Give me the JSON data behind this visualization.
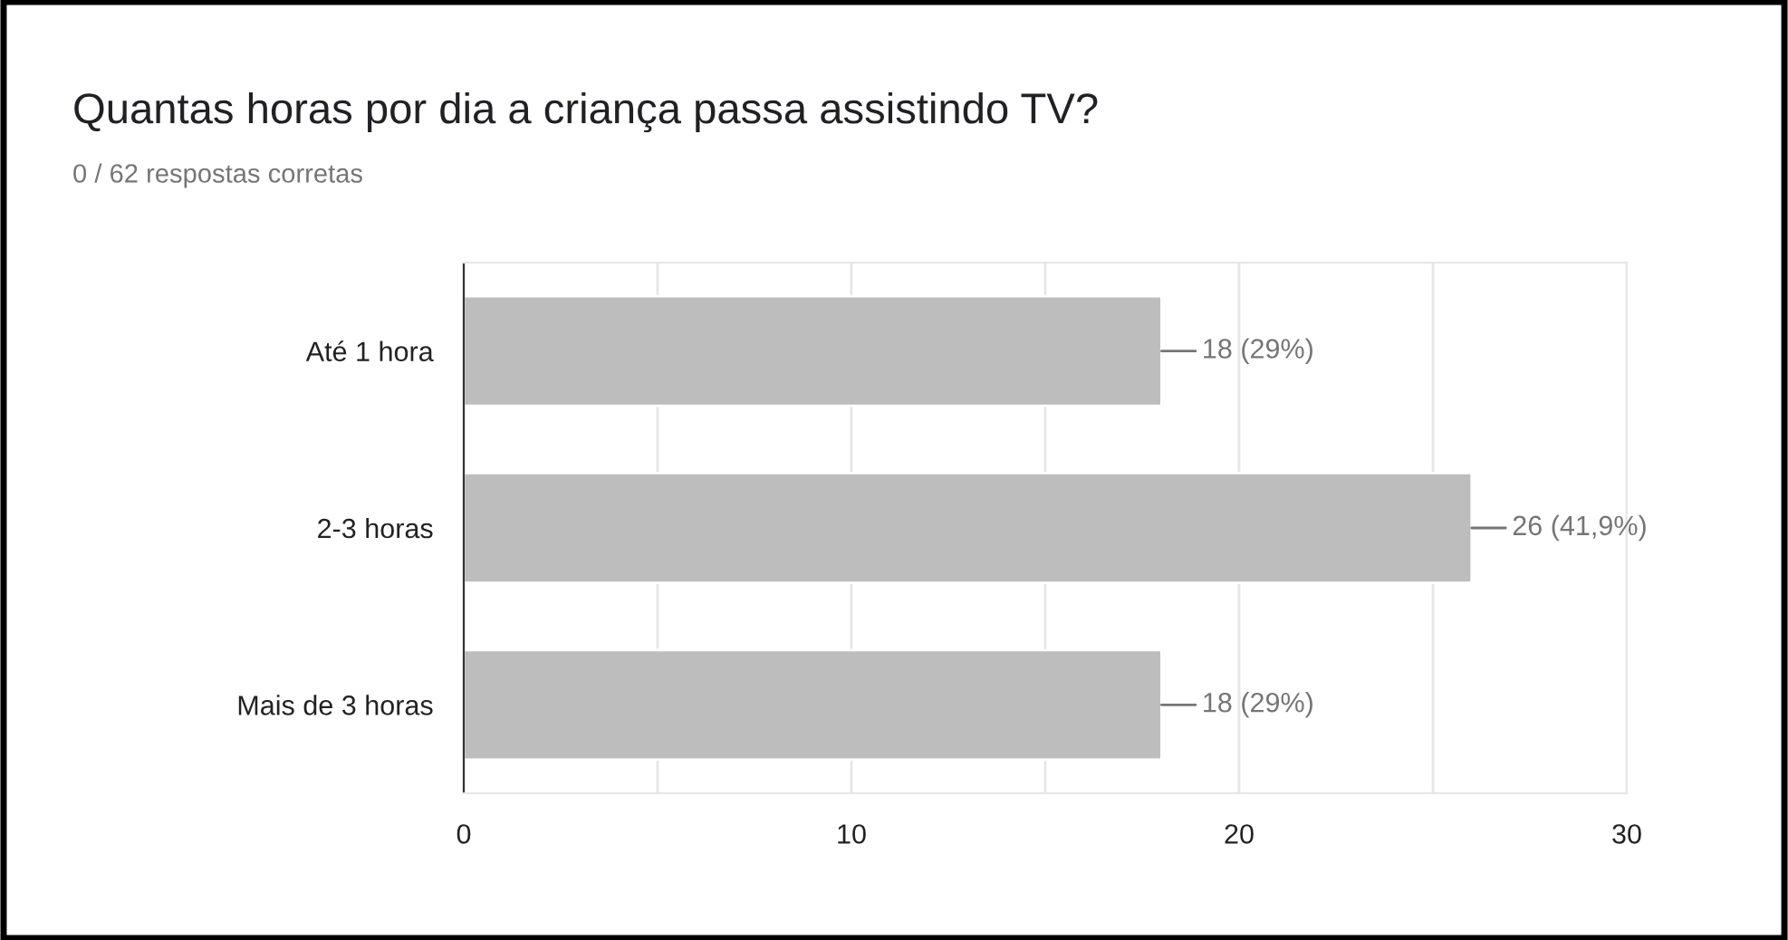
{
  "chart_data": {
    "type": "bar",
    "orientation": "horizontal",
    "title": "Quantas horas por dia a criança passa assistindo TV?",
    "subtitle": "0 / 62 respostas corretas",
    "categories": [
      "Até 1 hora",
      "2-3 horas",
      "Mais de 3 horas"
    ],
    "values": [
      18,
      26,
      18
    ],
    "color": "#bdbdbd",
    "value_labels": [
      "18 (29%)",
      "26 (41,9%)",
      "18 (29%)"
    ],
    "xlim": [
      0,
      30
    ],
    "xticks": [
      0,
      {
        "value": 5,
        "label": null
      },
      10,
      {
        "value": 15,
        "label": null
      },
      20,
      {
        "value": 25,
        "label": null
      },
      30
    ],
    "grid": "x",
    "legend": false
  }
}
